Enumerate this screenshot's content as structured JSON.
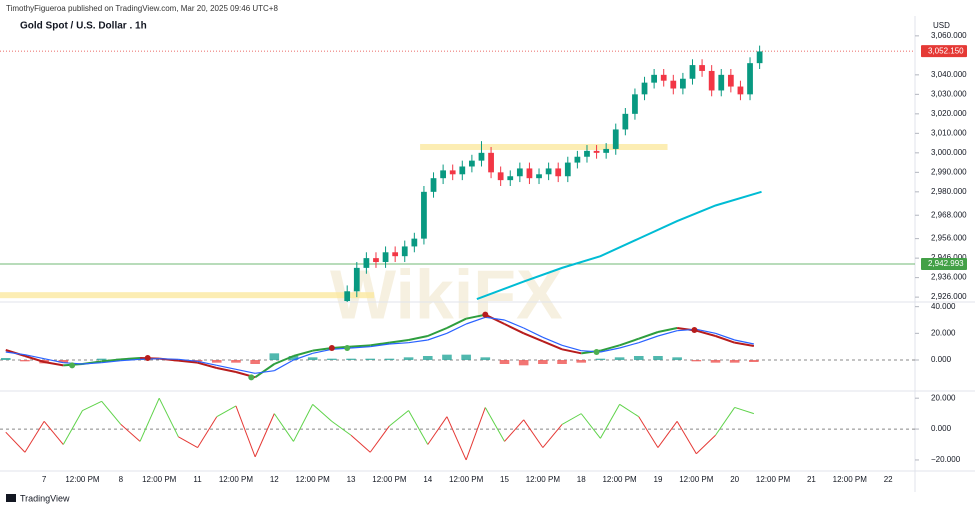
{
  "header": "TimothyFigueroa published on TradingView.com, Mar 20, 2025 09:46 UTC+8",
  "currency": "USD",
  "footer": "TradingView",
  "watermark": "WikiFX",
  "chart_data": [
    {
      "type": "candlestick",
      "title": "Gold Spot / U.S. Dollar . 1h",
      "up_color": "#089981",
      "down_color": "#f23645",
      "xlim": [
        -1.15,
        22.7
      ],
      "ylim": [
        2923.5,
        3063
      ],
      "yticks": [
        {
          "value": 3060,
          "label": "3,060.000"
        },
        {
          "value": 3040,
          "label": "3,040.000"
        },
        {
          "value": 3030,
          "label": "3,030.000"
        },
        {
          "value": 3020,
          "label": "3,020.000"
        },
        {
          "value": 3010,
          "label": "3,010.000"
        },
        {
          "value": 3000,
          "label": "3,000.000"
        },
        {
          "value": 2990,
          "label": "2,990.000"
        },
        {
          "value": 2980,
          "label": "2,980.000"
        },
        {
          "value": 2968,
          "label": "2,968.000"
        },
        {
          "value": 2956,
          "label": "2,956.000"
        },
        {
          "value": 2946,
          "label": "2,946.000"
        },
        {
          "value": 2936,
          "label": "2,936.000"
        },
        {
          "value": 2926,
          "label": "2,926.000"
        }
      ],
      "x": [
        7.9,
        8.15,
        8.4,
        8.65,
        8.9,
        9.15,
        9.4,
        9.65,
        9.9,
        10.15,
        10.4,
        10.65,
        10.9,
        11.15,
        11.4,
        11.65,
        11.9,
        12.15,
        12.4,
        12.65,
        12.9,
        13.15,
        13.4,
        13.65,
        13.9,
        14.15,
        14.4,
        14.65,
        14.9,
        15.15,
        15.4,
        15.65,
        15.9,
        16.15,
        16.4,
        16.65,
        16.9,
        17.15,
        17.4,
        17.65,
        17.9,
        18.15,
        18.4,
        18.65
      ],
      "open": [
        2924,
        2929,
        2941,
        2946,
        2944,
        2949,
        2947,
        2952,
        2956,
        2980,
        2987,
        2991,
        2989,
        2993,
        2996,
        3000,
        2990,
        2986,
        2988,
        2992,
        2987,
        2989,
        2992,
        2988,
        2995,
        2998,
        3001,
        3000,
        3002,
        3012,
        3020,
        3030,
        3036,
        3040,
        3037,
        3033,
        3038,
        3045,
        3042,
        3032,
        3040,
        3034,
        3030,
        3046
      ],
      "high": [
        2932,
        2944,
        2949,
        2949,
        2952,
        2952,
        2955,
        2959,
        2983,
        2990,
        2994,
        2994,
        2996,
        2999,
        3006,
        3003,
        2993,
        2991,
        2995,
        2995,
        2992,
        2995,
        2995,
        2998,
        3001,
        3004,
        3004,
        3005,
        3015,
        3023,
        3033,
        3039,
        3043,
        3043,
        3040,
        3041,
        3048,
        3048,
        3045,
        3043,
        3043,
        3037,
        3049,
        3055
      ],
      "low": [
        2921,
        2926,
        2938,
        2941,
        2941,
        2944,
        2944,
        2949,
        2953,
        2977,
        2984,
        2986,
        2986,
        2990,
        2993,
        2987,
        2983,
        2983,
        2985,
        2984,
        2984,
        2986,
        2985,
        2985,
        2992,
        2995,
        2997,
        2997,
        2999,
        3009,
        3017,
        3027,
        3033,
        3034,
        3030,
        3030,
        3035,
        3039,
        3029,
        3029,
        3031,
        3027,
        3027,
        3043
      ],
      "close": [
        2929,
        2941,
        2946,
        2944,
        2949,
        2947,
        2952,
        2956,
        2980,
        2987,
        2991,
        2989,
        2993,
        2996,
        3000,
        2990,
        2986,
        2988,
        2992,
        2987,
        2989,
        2992,
        2988,
        2995,
        2998,
        3001,
        3000,
        3002,
        3012,
        3020,
        3030,
        3036,
        3040,
        3037,
        3033,
        3038,
        3045,
        3042,
        3032,
        3040,
        3034,
        3030,
        3046,
        3052
      ],
      "ma": {
        "color": "#00bcd4",
        "x": [
          11.28,
          12.5,
          13.5,
          14.5,
          15.5,
          16.5,
          17.5,
          18.7
        ],
        "values": [
          2925,
          2934,
          2941,
          2947,
          2956,
          2965,
          2973,
          2980
        ]
      },
      "zones": [
        {
          "value": 3003,
          "x": [
            9.8,
            16.25
          ],
          "color": "#fbe9a0"
        },
        {
          "value": 2927,
          "x": [
            -1.15,
            8.6
          ],
          "color": "#fbe9a0"
        }
      ],
      "price_lines": [
        {
          "value": 3052.15,
          "label": "3,052.150",
          "color": "#e53935"
        },
        {
          "value": 2942.993,
          "label": "2,942.993",
          "color": "#43a047"
        }
      ]
    },
    {
      "type": "macd",
      "xlim": [
        -1.15,
        22.7
      ],
      "ylim": [
        -22.5,
        43.5
      ],
      "yticks": [
        {
          "value": 40,
          "label": "40.000"
        },
        {
          "value": 20,
          "label": "20.000"
        },
        {
          "value": 0,
          "label": "0.000"
        }
      ],
      "x": [
        -1,
        -0.5,
        0,
        0.5,
        1,
        1.5,
        2,
        2.5,
        3,
        3.5,
        4,
        4.5,
        5,
        5.5,
        6,
        6.5,
        7,
        7.5,
        8,
        8.5,
        9,
        9.5,
        10,
        10.5,
        11,
        11.5,
        12,
        12.5,
        13,
        13.5,
        14,
        14.5,
        15,
        15.5,
        16,
        16.5,
        17,
        17.5,
        18,
        18.5
      ],
      "histogram": {
        "up_color": "#26a69a",
        "down_color": "#ef5350",
        "values": [
          1.5,
          -1,
          -2.5,
          -2,
          0,
          1,
          1,
          1,
          0,
          -1,
          -1,
          -2,
          -2,
          -3,
          5,
          3,
          2,
          1,
          1,
          1,
          1,
          2,
          3,
          4,
          4,
          2,
          -3,
          -4,
          -3,
          -3,
          -2,
          1,
          2,
          3,
          3,
          2,
          -1,
          -2,
          -2,
          -1.5
        ]
      },
      "series": [
        {
          "up_color": "#2e9e3e",
          "down_color": "#b71c1c",
          "values": [
            7.5,
            3,
            -1.5,
            -4,
            -3,
            -1,
            0.5,
            1.5,
            1,
            -0.5,
            -2,
            -6,
            -9,
            -13,
            -3,
            3,
            7,
            9,
            10,
            11,
            13,
            15,
            18,
            24,
            31,
            34,
            27,
            20,
            14,
            8,
            5,
            7,
            11,
            16,
            21,
            24,
            22,
            18,
            13,
            10.5
          ]
        },
        {
          "color": "#2962ff",
          "values": [
            6,
            4,
            1,
            -2,
            -3,
            -2,
            -0.5,
            0.5,
            1,
            0.5,
            -1,
            -4,
            -7,
            -10,
            -8,
            0,
            5,
            8,
            9,
            10,
            12,
            13,
            15,
            20,
            27,
            32,
            30,
            24,
            17,
            11,
            7,
            6,
            9,
            13,
            18,
            22,
            23,
            20,
            15,
            12
          ]
        }
      ],
      "crosses": {
        "up_color": "#4caf50",
        "down_color": "#b71c1c",
        "x": [
          0.73,
          2.7,
          5.4,
          7.5,
          7.9,
          11.5,
          14.4,
          16.95
        ],
        "values": [
          -4,
          1.5,
          -13,
          9,
          9,
          34,
          6,
          22.5
        ],
        "direction": [
          "up",
          "down",
          "up",
          "down",
          "up",
          "down",
          "up",
          "down"
        ]
      }
    },
    {
      "type": "line",
      "xlim": [
        -1.15,
        22.7
      ],
      "ylim": [
        -26.5,
        24
      ],
      "up_color": "#5fd34a",
      "down_color": "#e53935",
      "yticks": [
        {
          "value": 20,
          "label": "20.000"
        },
        {
          "value": 0,
          "label": "0.000"
        },
        {
          "value": -20,
          "label": "−20.000"
        }
      ],
      "x": [
        -1,
        -0.5,
        0,
        0.5,
        1,
        1.5,
        2,
        2.5,
        3,
        3.5,
        4,
        4.5,
        5,
        5.5,
        6,
        6.5,
        7,
        7.5,
        8,
        8.5,
        9,
        9.5,
        10,
        10.5,
        11,
        11.5,
        12,
        12.5,
        13,
        13.5,
        14,
        14.5,
        15,
        15.5,
        16,
        16.5,
        17,
        17.5,
        18,
        18.5
      ],
      "values": [
        -2,
        -15,
        5,
        -10,
        12,
        18,
        3,
        -8,
        20,
        -5,
        -12,
        8,
        15,
        -18,
        10,
        -8,
        16,
        5,
        -4,
        -15,
        2,
        12,
        -10,
        8,
        -20,
        14,
        -8,
        6,
        -12,
        3,
        10,
        -6,
        16,
        8,
        -12,
        5,
        -16,
        -4,
        14,
        10
      ],
      "xticks": [
        {
          "value": 0,
          "label": "7"
        },
        {
          "value": 1,
          "label": "12:00 PM"
        },
        {
          "value": 2,
          "label": "8"
        },
        {
          "value": 3,
          "label": "12:00 PM"
        },
        {
          "value": 4,
          "label": "11"
        },
        {
          "value": 5,
          "label": "12:00 PM"
        },
        {
          "value": 6,
          "label": "12"
        },
        {
          "value": 7,
          "label": "12:00 PM"
        },
        {
          "value": 8,
          "label": "13"
        },
        {
          "value": 9,
          "label": "12:00 PM"
        },
        {
          "value": 10,
          "label": "14"
        },
        {
          "value": 11,
          "label": "12:00 PM"
        },
        {
          "value": 12,
          "label": "15"
        },
        {
          "value": 13,
          "label": "12:00 PM"
        },
        {
          "value": 14,
          "label": "18"
        },
        {
          "value": 15,
          "label": "12:00 PM"
        },
        {
          "value": 16,
          "label": "19"
        },
        {
          "value": 17,
          "label": "12:00 PM"
        },
        {
          "value": 18,
          "label": "20"
        },
        {
          "value": 19,
          "label": "12:00 PM"
        },
        {
          "value": 20,
          "label": "21"
        },
        {
          "value": 21,
          "label": "12:00 PM"
        },
        {
          "value": 22,
          "label": "22"
        }
      ]
    }
  ]
}
